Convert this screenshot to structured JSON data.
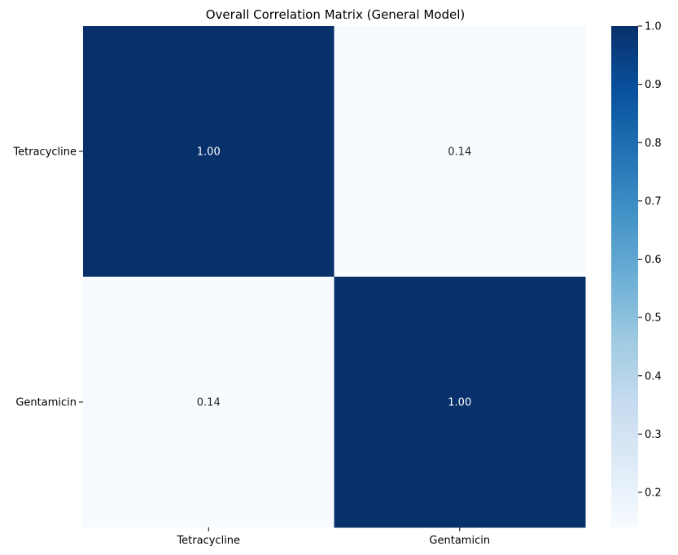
{
  "chart_data": {
    "type": "heatmap",
    "title": "Overall Correlation Matrix (General Model)",
    "xlabel": "",
    "ylabel": "",
    "x_categories": [
      "Tetracycline",
      "Gentamicin"
    ],
    "y_categories": [
      "Tetracycline",
      "Gentamicin"
    ],
    "values": [
      [
        1.0,
        0.14
      ],
      [
        0.14,
        1.0
      ]
    ],
    "annotations": [
      [
        "1.00",
        "0.14"
      ],
      [
        "0.14",
        "1.00"
      ]
    ],
    "colormap": "Blues",
    "colorbar": {
      "range": [
        0.14,
        1.0
      ],
      "ticks": [
        0.2,
        0.3,
        0.4,
        0.5,
        0.6,
        0.7,
        0.8,
        0.9,
        1.0
      ],
      "tick_labels": [
        "0.2",
        "0.3",
        "0.4",
        "0.5",
        "0.6",
        "0.7",
        "0.8",
        "0.9",
        "1.0"
      ]
    },
    "colors": {
      "high": "#08306b",
      "low": "#f7fbff",
      "annotation_on_dark": "#ffffff",
      "annotation_on_light": "#262626"
    }
  }
}
